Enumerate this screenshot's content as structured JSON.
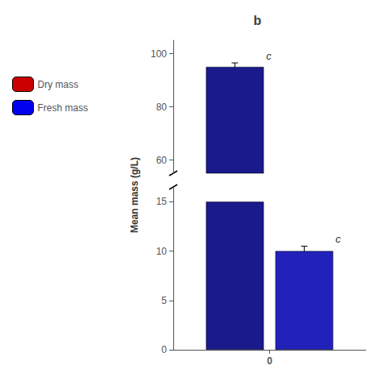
{
  "chart_data": [
    {
      "type": "bar",
      "title": "b",
      "ylabel": "Mean mass (g/L)",
      "categories": [
        "0"
      ],
      "ylim": [
        55,
        105
      ],
      "yticks": [
        60,
        80,
        100
      ],
      "grid": false,
      "tick_labels": "y",
      "legend": "upper left",
      "series": [
        {
          "values": [
            95
          ],
          "errors": [
            1.5
          ],
          "color": "#1a1a8c",
          "annotations": [
            "c"
          ]
        },
        {
          "values": [
            null
          ]
        },
        {
          "name": "Dry mass",
          "color": "#cc0000",
          "values": [
            null
          ]
        },
        {
          "name": "Fresh mass",
          "color": "#0000ee",
          "values": [
            null
          ]
        }
      ]
    },
    {
      "type": "bar",
      "categories": [
        "0"
      ],
      "ylim": [
        0,
        16.5
      ],
      "yticks": [
        0,
        5,
        10,
        15
      ],
      "grid": false,
      "series": [
        {
          "values": [
            15
          ],
          "errors": [
            0
          ],
          "color": "#1a1a8c"
        },
        {
          "values": [
            10
          ],
          "errors": [
            0.5
          ],
          "color": "#2222bb",
          "annotations": [
            "c"
          ]
        }
      ]
    }
  ]
}
